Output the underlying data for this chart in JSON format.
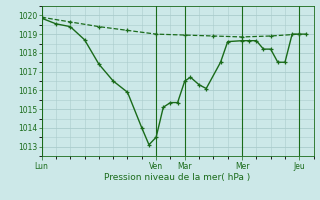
{
  "background_color": "#cce8e8",
  "grid_color": "#aacccc",
  "line_color": "#1a6b1a",
  "xlabel": "Pression niveau de la mer( hPa )",
  "ylim": [
    1012.5,
    1020.5
  ],
  "yticks": [
    1013,
    1014,
    1015,
    1016,
    1017,
    1018,
    1019,
    1020
  ],
  "xtick_labels": [
    "Lun",
    "Ven",
    "Mar",
    "Mer",
    "Jeu"
  ],
  "xtick_positions": [
    0,
    8,
    10,
    14,
    18
  ],
  "xlim": [
    0,
    19
  ],
  "num_minor_x": 19,
  "series1_x": [
    0,
    2,
    4,
    6,
    8,
    10,
    12,
    14,
    16,
    18
  ],
  "series1_y": [
    1019.9,
    1019.65,
    1019.4,
    1019.2,
    1019.0,
    1018.95,
    1018.9,
    1018.85,
    1018.9,
    1019.0
  ],
  "series2_x": [
    0,
    1,
    2,
    3,
    4,
    5,
    6,
    7,
    7.5,
    8.0,
    8.5,
    9.0,
    9.5,
    10.0,
    10.4,
    11.0,
    11.5,
    12.5,
    13.0,
    14.0,
    14.5,
    15.0,
    15.5,
    16.0,
    16.5,
    17.0,
    17.5,
    18.0,
    18.5
  ],
  "series2_y": [
    1019.85,
    1019.55,
    1019.4,
    1018.7,
    1017.4,
    1016.5,
    1015.9,
    1014.0,
    1013.1,
    1013.5,
    1015.1,
    1015.35,
    1015.35,
    1016.5,
    1016.7,
    1016.3,
    1016.1,
    1017.5,
    1018.6,
    1018.65,
    1018.65,
    1018.65,
    1018.2,
    1018.2,
    1017.5,
    1017.5,
    1019.0,
    1019.0,
    1019.0
  ]
}
